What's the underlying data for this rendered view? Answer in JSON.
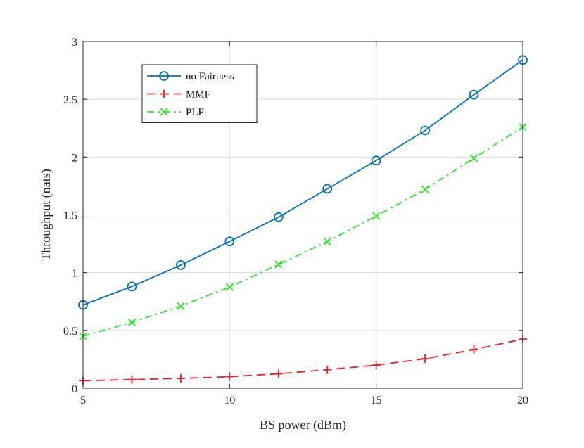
{
  "chart_data": {
    "type": "line",
    "xlabel": "BS power (dBm)",
    "ylabel": "Throughput (nats)",
    "xlim": [
      5,
      20
    ],
    "ylim": [
      0,
      3
    ],
    "xticks": [
      5,
      10,
      15,
      20
    ],
    "yticks": [
      0,
      0.5,
      1,
      1.5,
      2,
      2.5,
      3
    ],
    "xtick_labels": [
      "5",
      "10",
      "15",
      "20"
    ],
    "ytick_labels": [
      "0",
      "0.5",
      "1",
      "1.5",
      "2",
      "2.5",
      "3"
    ],
    "grid": true,
    "legend_position": "top-left",
    "x": [
      5,
      6.667,
      8.333,
      10,
      11.667,
      13.333,
      15,
      16.667,
      18.333,
      20
    ],
    "series": [
      {
        "name": "no Fairness",
        "color": "#0072BD",
        "dash": "solid",
        "marker": "circle",
        "values": [
          0.72,
          0.88,
          1.065,
          1.27,
          1.48,
          1.725,
          1.97,
          2.23,
          2.54,
          2.84
        ]
      },
      {
        "name": "MMF",
        "color": "#E8202A",
        "dash": "dashed",
        "marker": "plus",
        "values": [
          0.065,
          0.075,
          0.085,
          0.1,
          0.125,
          0.16,
          0.2,
          0.255,
          0.335,
          0.425
        ]
      },
      {
        "name": "PLF",
        "color": "#2EE62E",
        "dash": "dashdot",
        "marker": "x",
        "values": [
          0.45,
          0.57,
          0.71,
          0.875,
          1.07,
          1.27,
          1.49,
          1.72,
          1.99,
          2.26
        ]
      }
    ]
  }
}
